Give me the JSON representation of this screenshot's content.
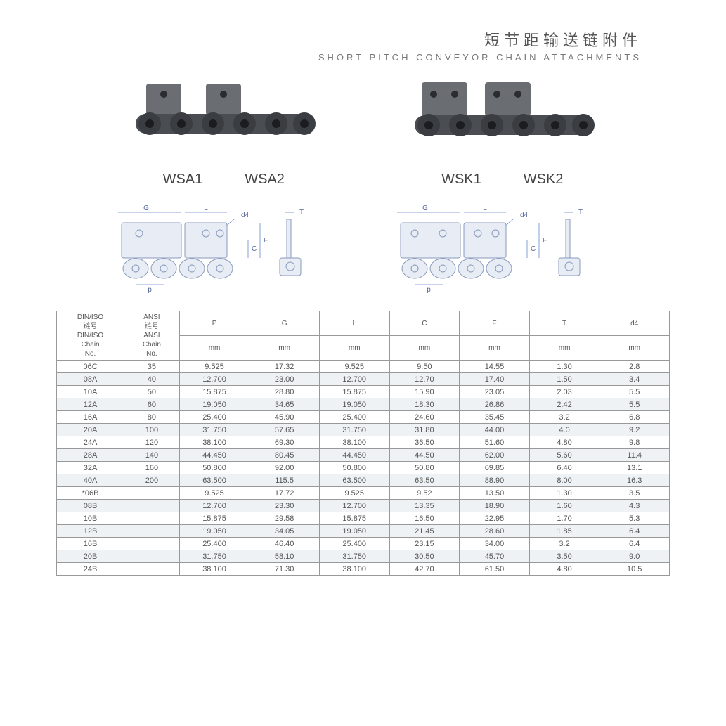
{
  "header": {
    "title_cn": "短节距输送链附件",
    "title_en": "SHORT PITCH CONVEYOR CHAIN ATTACHMENTS"
  },
  "photo_labels": {
    "left": [
      "WSA1",
      "WSA2"
    ],
    "right": [
      "WSK1",
      "WSK2"
    ]
  },
  "diagram_dims": [
    "G",
    "L",
    "d4",
    "T",
    "C",
    "F",
    "p"
  ],
  "table": {
    "header": {
      "din": "DIN/ISO\n链号\nDIN/ISO\nChain\nNo.",
      "ansi": "ANSI\n链号\nANSI\nChain\nNo.",
      "cols": [
        "P",
        "G",
        "L",
        "C",
        "F",
        "T",
        "d4"
      ],
      "unit": "mm"
    },
    "rows": [
      [
        "06C",
        "35",
        "9.525",
        "17.32",
        "9.525",
        "9.50",
        "14.55",
        "1.30",
        "2.8"
      ],
      [
        "08A",
        "40",
        "12.700",
        "23.00",
        "12.700",
        "12.70",
        "17.40",
        "1.50",
        "3.4"
      ],
      [
        "10A",
        "50",
        "15.875",
        "28.80",
        "15.875",
        "15.90",
        "23.05",
        "2.03",
        "5.5"
      ],
      [
        "12A",
        "60",
        "19.050",
        "34.65",
        "19.050",
        "18.30",
        "26.86",
        "2.42",
        "5.5"
      ],
      [
        "16A",
        "80",
        "25.400",
        "45.90",
        "25.400",
        "24.60",
        "35.45",
        "3.2",
        "6.8"
      ],
      [
        "20A",
        "100",
        "31.750",
        "57.65",
        "31.750",
        "31.80",
        "44.00",
        "4.0",
        "9.2"
      ],
      [
        "24A",
        "120",
        "38.100",
        "69.30",
        "38.100",
        "36.50",
        "51.60",
        "4.80",
        "9.8"
      ],
      [
        "28A",
        "140",
        "44.450",
        "80.45",
        "44.450",
        "44.50",
        "62.00",
        "5.60",
        "11.4"
      ],
      [
        "32A",
        "160",
        "50.800",
        "92.00",
        "50.800",
        "50.80",
        "69.85",
        "6.40",
        "13.1"
      ],
      [
        "40A",
        "200",
        "63.500",
        "115.5",
        "63.500",
        "63.50",
        "88.90",
        "8.00",
        "16.3"
      ],
      [
        "*06B",
        "",
        "9.525",
        "17.72",
        "9.525",
        "9.52",
        "13.50",
        "1.30",
        "3.5"
      ],
      [
        "08B",
        "",
        "12.700",
        "23.30",
        "12.700",
        "13.35",
        "18.90",
        "1.60",
        "4.3"
      ],
      [
        "10B",
        "",
        "15.875",
        "29.58",
        "15.875",
        "16.50",
        "22.95",
        "1.70",
        "5.3"
      ],
      [
        "12B",
        "",
        "19.050",
        "34.05",
        "19.050",
        "21.45",
        "28.60",
        "1.85",
        "6.4"
      ],
      [
        "16B",
        "",
        "25.400",
        "46.40",
        "25.400",
        "23.15",
        "34.00",
        "3.2",
        "6.4"
      ],
      [
        "20B",
        "",
        "31.750",
        "58.10",
        "31.750",
        "30.50",
        "45.70",
        "3.50",
        "9.0"
      ],
      [
        "24B",
        "",
        "38.100",
        "71.30",
        "38.100",
        "42.70",
        "61.50",
        "4.80",
        "10.5"
      ]
    ]
  },
  "styling": {
    "page_bg": "#ffffff",
    "title_cn_color": "#555555",
    "title_cn_fontsize": 22,
    "title_en_color": "#777777",
    "title_en_fontsize": 13,
    "label_fontsize": 20,
    "label_color": "#444444",
    "table_border": "#999999",
    "table_text": "#555555",
    "table_fontsize": 11,
    "row_alt_bg": "#eef2f5",
    "diagram_stroke": "#8899bb",
    "diagram_fill": "#e8ecf4",
    "chain_metal_dark": "#3a3d42",
    "chain_metal_mid": "#4a4d52",
    "chain_metal_light": "#6a6d72"
  }
}
